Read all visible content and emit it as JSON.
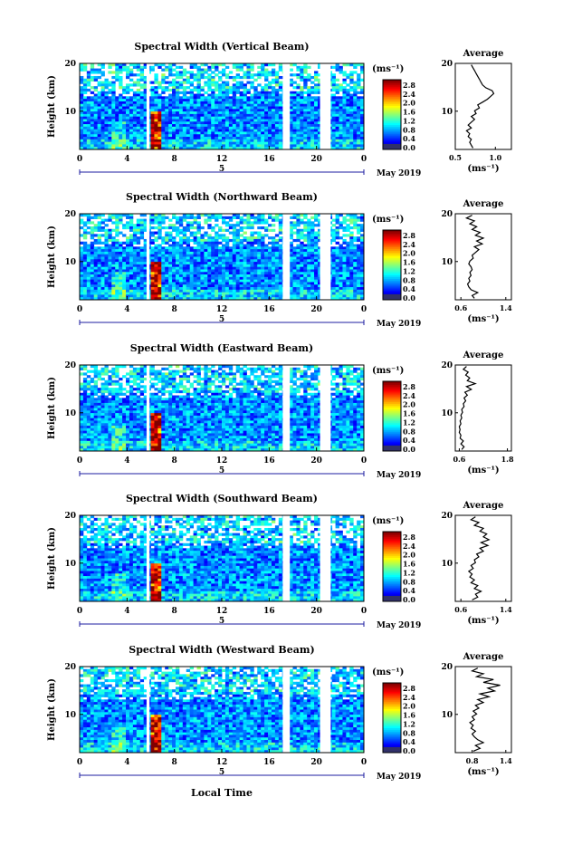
{
  "chart_data": [
    {
      "type": "heatmap",
      "title": "Spectral Width (Vertical Beam)",
      "ylabel": "Height (km)",
      "unit_label": "(ms⁻¹)",
      "x_ticks": [
        "0",
        "4",
        "8",
        "12",
        "16",
        "20",
        "0"
      ],
      "y_ticks": [
        "10",
        "20"
      ],
      "date_center": "5",
      "date_right": "May 2019",
      "colorbar_ticks": [
        "2.8",
        "2.4",
        "2.0",
        "1.6",
        "1.2",
        "0.8",
        "0.4",
        "0.0"
      ],
      "average": {
        "title": "Average",
        "ylabel": "",
        "xlabel": "(ms⁻¹)",
        "x_ticks": [
          "0.5",
          "1.0"
        ],
        "xlim": [
          0.5,
          1.2
        ],
        "values": [
          0.72,
          0.7,
          0.68,
          0.7,
          0.66,
          0.68,
          0.64,
          0.7,
          0.66,
          0.7,
          0.74,
          0.7,
          0.76,
          0.74,
          0.8,
          0.78,
          0.84,
          0.9,
          0.94,
          0.98,
          0.96,
          0.88,
          0.84,
          0.82,
          0.8,
          0.78,
          0.76,
          0.74,
          0.72,
          0.7
        ]
      }
    },
    {
      "type": "heatmap",
      "title": "Spectral Width (Northward Beam)",
      "ylabel": "Height (km)",
      "unit_label": "(ms⁻¹)",
      "x_ticks": [
        "0",
        "4",
        "8",
        "12",
        "16",
        "20",
        "0"
      ],
      "y_ticks": [
        "10",
        "20"
      ],
      "date_center": "5",
      "date_right": "May 2019",
      "colorbar_ticks": [
        "2.8",
        "2.4",
        "2.0",
        "1.6",
        "1.2",
        "0.8",
        "0.4",
        "0.0"
      ],
      "average": {
        "title": "Average",
        "ylabel": "",
        "xlabel": "(ms⁻¹)",
        "x_ticks": [
          "0.6",
          "1.4"
        ],
        "xlim": [
          0.5,
          1.5
        ],
        "values": [
          0.84,
          0.8,
          0.9,
          0.78,
          0.74,
          0.72,
          0.76,
          0.74,
          0.78,
          0.76,
          0.8,
          0.78,
          0.74,
          0.76,
          0.82,
          0.8,
          0.86,
          0.92,
          0.84,
          0.98,
          0.88,
          1.0,
          0.86,
          0.94,
          0.8,
          0.88,
          0.76,
          0.84,
          0.7,
          0.8
        ]
      }
    },
    {
      "type": "heatmap",
      "title": "Spectral Width (Eastward Beam)",
      "ylabel": "Height (km)",
      "unit_label": "(ms⁻¹)",
      "x_ticks": [
        "0",
        "4",
        "8",
        "12",
        "16",
        "20",
        "0"
      ],
      "y_ticks": [
        "10",
        "20"
      ],
      "date_center": "5",
      "date_right": "May 2019",
      "colorbar_ticks": [
        "2.8",
        "2.4",
        "2.0",
        "1.6",
        "1.2",
        "0.8",
        "0.4",
        "0.0"
      ],
      "average": {
        "title": "Average",
        "ylabel": "",
        "xlabel": "(ms⁻¹)",
        "x_ticks": [
          "0.6",
          "1.8"
        ],
        "xlim": [
          0.5,
          1.9
        ],
        "values": [
          0.66,
          0.72,
          0.64,
          0.7,
          0.62,
          0.64,
          0.6,
          0.62,
          0.6,
          0.64,
          0.62,
          0.66,
          0.64,
          0.68,
          0.66,
          0.72,
          0.7,
          0.76,
          0.72,
          0.8,
          0.74,
          0.9,
          0.78,
          1.0,
          0.8,
          0.86,
          0.76,
          0.82,
          0.7,
          0.78
        ]
      }
    },
    {
      "type": "heatmap",
      "title": "Spectral Width (Southward Beam)",
      "ylabel": "Height (km)",
      "unit_label": "(ms⁻¹)",
      "x_ticks": [
        "0",
        "4",
        "8",
        "12",
        "16",
        "20",
        "0"
      ],
      "y_ticks": [
        "10",
        "20"
      ],
      "date_center": "5",
      "date_right": "May 2019",
      "colorbar_ticks": [
        "2.8",
        "2.4",
        "2.0",
        "1.6",
        "1.2",
        "0.8",
        "0.4",
        "0.0"
      ],
      "average": {
        "title": "Average",
        "ylabel": "",
        "xlabel": "(ms⁻¹)",
        "x_ticks": [
          "0.6",
          "1.4"
        ],
        "xlim": [
          0.5,
          1.5
        ],
        "values": [
          0.8,
          0.9,
          0.86,
          0.96,
          0.84,
          0.9,
          0.78,
          0.84,
          0.76,
          0.8,
          0.74,
          0.82,
          0.78,
          0.86,
          0.84,
          0.92,
          0.88,
          1.0,
          0.94,
          1.08,
          0.96,
          1.1,
          1.0,
          1.06,
          0.94,
          1.0,
          0.84,
          0.92,
          0.78,
          0.86
        ]
      }
    },
    {
      "type": "heatmap",
      "title": "Spectral Width (Westward Beam)",
      "ylabel": "Height (km)",
      "unit_label": "(ms⁻¹)",
      "x_ticks": [
        "0",
        "4",
        "8",
        "12",
        "16",
        "20",
        "0"
      ],
      "y_ticks": [
        "10",
        "20"
      ],
      "date_center": "5",
      "date_right": "May 2019",
      "colorbar_ticks": [
        "2.8",
        "2.4",
        "2.0",
        "1.6",
        "1.2",
        "0.8",
        "0.4",
        "0.0"
      ],
      "average": {
        "title": "Average",
        "ylabel": "",
        "xlabel": "(ms⁻¹)",
        "x_ticks": [
          "0.8",
          "1.4"
        ],
        "xlim": [
          0.5,
          1.5
        ],
        "values": [
          0.82,
          0.94,
          0.86,
          1.0,
          0.9,
          0.84,
          0.8,
          0.86,
          0.78,
          0.82,
          0.76,
          0.84,
          0.8,
          0.88,
          0.82,
          0.92,
          0.86,
          1.0,
          0.9,
          1.1,
          0.94,
          1.2,
          1.08,
          1.3,
          1.0,
          1.18,
          0.88,
          1.0,
          0.8,
          0.9
        ]
      }
    }
  ],
  "footer_xlabel": "Local Time",
  "colors": {
    "text": "#000000",
    "date_axis": "#1e1ea0",
    "gap": "#ffffff"
  }
}
